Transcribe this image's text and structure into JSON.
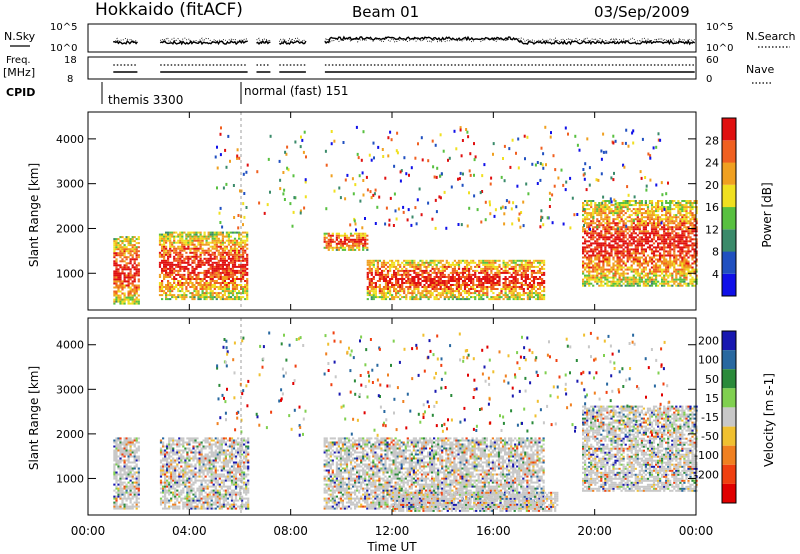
{
  "header": {
    "station": "Hokkaido (fitACF)",
    "beam": "Beam 01",
    "date": "03/Sep/2009"
  },
  "nsky_panel": {
    "left_label": "N.Sky",
    "right_label": "N.Search",
    "left_ticks": [
      "10^5",
      "10^0"
    ],
    "right_ticks": [
      "10^5",
      "10^0"
    ]
  },
  "freq_panel": {
    "left_label_line1": "Freq.",
    "left_label_line2": "[MHz]",
    "left_ticks": [
      "18",
      "8"
    ],
    "right_ticks": [
      "60",
      "0"
    ],
    "right_label": "Nave"
  },
  "cpid_panel": {
    "label": "CPID",
    "programs": [
      {
        "name": "themis 3300",
        "start_hour": 1.0
      },
      {
        "name": "normal (fast) 151",
        "start_hour": 6.05
      }
    ]
  },
  "colors": {
    "power_scale": [
      "#1010e8",
      "#2050c0",
      "#3a8a6a",
      "#58c040",
      "#f0e020",
      "#f0a020",
      "#f06020",
      "#e01010"
    ],
    "velocity_scale": [
      "#1818b0",
      "#2868a0",
      "#2a8a3a",
      "#80d050",
      "#c8c8c8",
      "#f0c030",
      "#f08020",
      "#f04010",
      "#e00000"
    ]
  },
  "chart_data": [
    {
      "type": "heatmap",
      "title": "",
      "xlabel": "",
      "ylabel": "Slant Range [km]",
      "x_ticks": [
        "00:00",
        "04:00",
        "08:00",
        "12:00",
        "16:00",
        "20:00",
        "00:00"
      ],
      "y_ticks": [
        "1000",
        "2000",
        "3000",
        "4000"
      ],
      "xlim_hours": [
        0,
        24
      ],
      "ylim_km": [
        180,
        4600
      ],
      "colorbar": {
        "label": "Power [dB]",
        "ticks": [
          "4",
          "8",
          "12",
          "16",
          "20",
          "24",
          "28"
        ],
        "range": [
          0,
          30
        ]
      },
      "data_gaps_hours": [
        [
          2.0,
          2.8
        ],
        [
          6.3,
          6.6
        ],
        [
          7.2,
          7.5
        ],
        [
          8.6,
          9.3
        ]
      ],
      "scatter_regions": [
        {
          "start_hour": 1.0,
          "end_hour": 2.0,
          "min_km": 300,
          "max_km": 1800,
          "dominant": "18-28"
        },
        {
          "start_hour": 2.8,
          "end_hour": 6.3,
          "min_km": 400,
          "max_km": 1900,
          "dominant": "16-28"
        },
        {
          "start_hour": 9.3,
          "end_hour": 11.0,
          "min_km": 1500,
          "max_km": 1900,
          "dominant": "26-30"
        },
        {
          "start_hour": 11.0,
          "end_hour": 18.0,
          "min_km": 400,
          "max_km": 1300,
          "dominant": "16-28"
        },
        {
          "start_hour": 19.5,
          "end_hour": 24.0,
          "min_km": 700,
          "max_km": 2600,
          "dominant": "20-30"
        }
      ]
    },
    {
      "type": "heatmap",
      "title": "",
      "xlabel": "Time UT",
      "ylabel": "Slant Range [km]",
      "x_ticks": [
        "00:00",
        "04:00",
        "08:00",
        "12:00",
        "16:00",
        "20:00",
        "00:00"
      ],
      "y_ticks": [
        "1000",
        "2000",
        "3000",
        "4000"
      ],
      "xlim_hours": [
        0,
        24
      ],
      "ylim_km": [
        180,
        4600
      ],
      "colorbar": {
        "label": "Velocity [m s-1]",
        "ticks": [
          "200",
          "100",
          "50",
          "15",
          "-15",
          "-50",
          "-100",
          "-200"
        ],
        "range": [
          -250,
          250
        ]
      },
      "data_gaps_hours": [
        [
          2.0,
          2.8
        ],
        [
          6.3,
          6.6
        ],
        [
          7.2,
          7.5
        ],
        [
          8.6,
          9.3
        ]
      ],
      "scatter_regions": [
        {
          "start_hour": 1.0,
          "end_hour": 6.3,
          "min_km": 300,
          "max_km": 1900,
          "dominant": "-15 to 15 (ground scatter)"
        },
        {
          "start_hour": 9.3,
          "end_hour": 18.0,
          "min_km": 300,
          "max_km": 1900,
          "dominant": "-15 to 15"
        },
        {
          "start_hour": 12.0,
          "end_hour": 18.5,
          "min_km": 250,
          "max_km": 700,
          "dominant": "-50 to -100"
        },
        {
          "start_hour": 19.5,
          "end_hour": 24.0,
          "min_km": 700,
          "max_km": 2600,
          "dominant": "-15 to 15"
        }
      ]
    }
  ]
}
